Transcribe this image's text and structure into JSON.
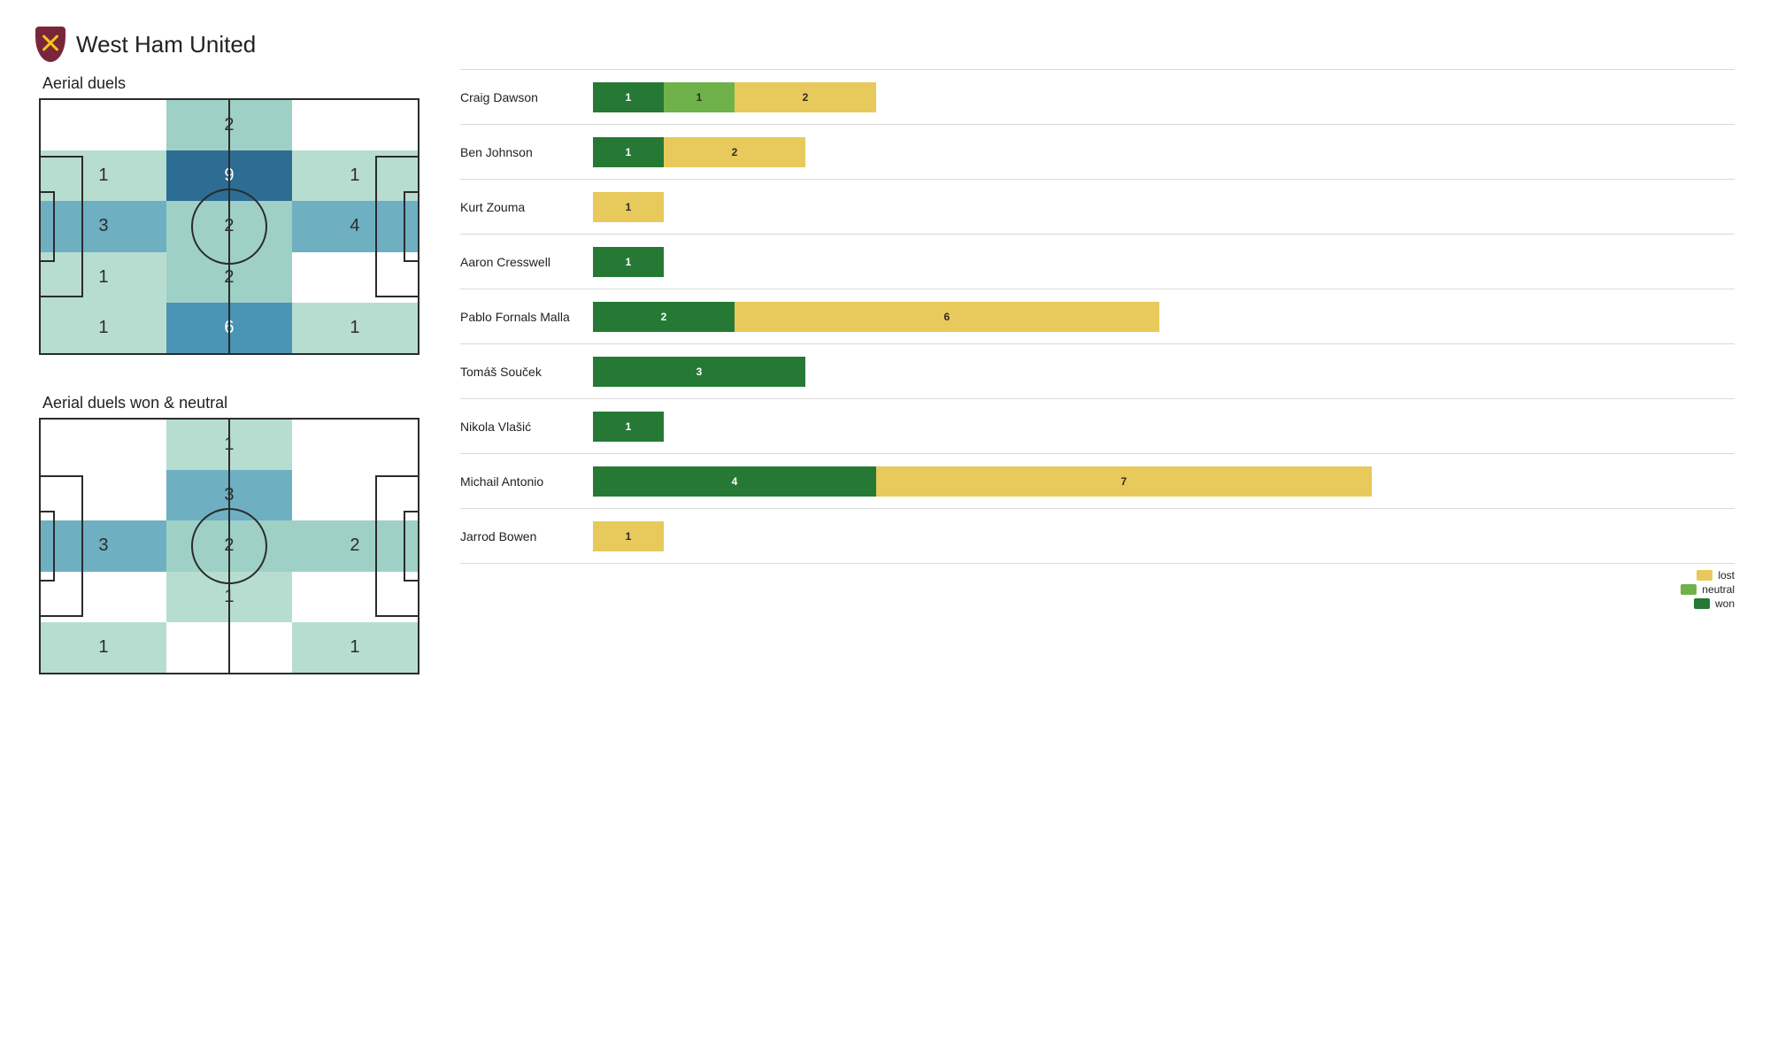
{
  "team": "West Ham United",
  "colors": {
    "won": "#257934",
    "neutral": "#6fb24a",
    "lost": "#e8c95c",
    "grid_line": "#d9d9d9",
    "pitch_line": "#2b2b2b",
    "zone_txt_dark": "#2b2b2b",
    "zone_txt_light": "#ffffff",
    "crest_primary": "#7a263a",
    "crest_accent": "#f5c518"
  },
  "heat_scale": [
    {
      "min": 0,
      "max": 0,
      "color": "#ffffff"
    },
    {
      "min": 1,
      "max": 1,
      "color": "#b7ddd1"
    },
    {
      "min": 2,
      "max": 2,
      "color": "#9ed0c6"
    },
    {
      "min": 3,
      "max": 4,
      "color": "#6eb0c2"
    },
    {
      "min": 5,
      "max": 6,
      "color": "#4a94b5"
    },
    {
      "min": 7,
      "max": 99,
      "color": "#2d6d93"
    }
  ],
  "pitches": [
    {
      "title": "Aerial duels",
      "rows": 5,
      "cols": 3,
      "cells": [
        [
          null,
          2,
          null
        ],
        [
          1,
          9,
          1
        ],
        [
          3,
          2,
          4
        ],
        [
          1,
          2,
          null
        ],
        [
          1,
          6,
          1
        ]
      ]
    },
    {
      "title": "Aerial duels won & neutral",
      "rows": 5,
      "cols": 3,
      "cells": [
        [
          null,
          1,
          null
        ],
        [
          null,
          3,
          null
        ],
        [
          3,
          2,
          2
        ],
        [
          null,
          1,
          null
        ],
        [
          1,
          null,
          1
        ]
      ]
    }
  ],
  "bars": {
    "max": 11,
    "unit_pct": 6.2,
    "legend": [
      "lost",
      "neutral",
      "won"
    ],
    "groups": [
      {
        "players": [
          {
            "name": "Craig Dawson",
            "won": 1,
            "neutral": 1,
            "lost": 2
          },
          {
            "name": "Ben Johnson",
            "won": 1,
            "neutral": 0,
            "lost": 2
          },
          {
            "name": "Kurt Zouma",
            "won": 0,
            "neutral": 0,
            "lost": 1
          },
          {
            "name": "Aaron Cresswell",
            "won": 1,
            "neutral": 0,
            "lost": 0
          }
        ]
      },
      {
        "players": [
          {
            "name": "Pablo Fornals Malla",
            "won": 2,
            "neutral": 0,
            "lost": 6
          },
          {
            "name": "Tomáš Souček",
            "won": 3,
            "neutral": 0,
            "lost": 0
          },
          {
            "name": "Nikola Vlašić",
            "won": 1,
            "neutral": 0,
            "lost": 0
          }
        ]
      },
      {
        "players": [
          {
            "name": "Michail Antonio",
            "won": 4,
            "neutral": 0,
            "lost": 7
          },
          {
            "name": "Jarrod Bowen",
            "won": 0,
            "neutral": 0,
            "lost": 1
          }
        ]
      }
    ]
  }
}
